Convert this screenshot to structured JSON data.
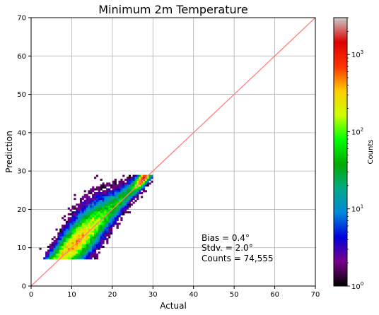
{
  "chart_data": {
    "type": "heatmap",
    "title": "Minimum 2m Temperature",
    "xlabel": "Actual",
    "ylabel": "Prediction",
    "xlim": [
      0,
      70
    ],
    "ylim": [
      0,
      70
    ],
    "xticks": [
      "0",
      "10",
      "20",
      "30",
      "40",
      "50",
      "60",
      "70"
    ],
    "yticks": [
      "0",
      "10",
      "20",
      "30",
      "40",
      "50",
      "60",
      "70"
    ],
    "grid": true,
    "reference_line": {
      "from": [
        0,
        0
      ],
      "to": [
        70,
        70
      ],
      "color": "#ff7f7f"
    },
    "annotations": [
      "Bias = 0.4°",
      "Stdv. = 2.0°",
      "Counts = 74,555"
    ],
    "density": {
      "description_values": "2D histogram of prediction vs actual, concentrated along y = x between roughly 1 and 30",
      "x_range": [
        1,
        30
      ],
      "y_range": [
        7,
        29
      ],
      "peak_near": [
        28,
        27.5
      ],
      "counts_min": 1,
      "counts_max": 3000
    },
    "colorbar": {
      "label": "Counts",
      "scale": "log",
      "range": [
        1,
        3000
      ],
      "ticks": [
        {
          "value": 1,
          "base": "10",
          "exp": "0"
        },
        {
          "value": 10,
          "base": "10",
          "exp": "1"
        },
        {
          "value": 100,
          "base": "10",
          "exp": "2"
        },
        {
          "value": 1000,
          "base": "10",
          "exp": "3"
        }
      ],
      "colormap": "nipy_spectral",
      "colors": [
        "#000000",
        "#7a0088",
        "#0000dd",
        "#0088dd",
        "#00aa88",
        "#00aa00",
        "#00ff00",
        "#ccff00",
        "#ffcc00",
        "#ff3300",
        "#dd0000",
        "#cccccc"
      ]
    }
  }
}
